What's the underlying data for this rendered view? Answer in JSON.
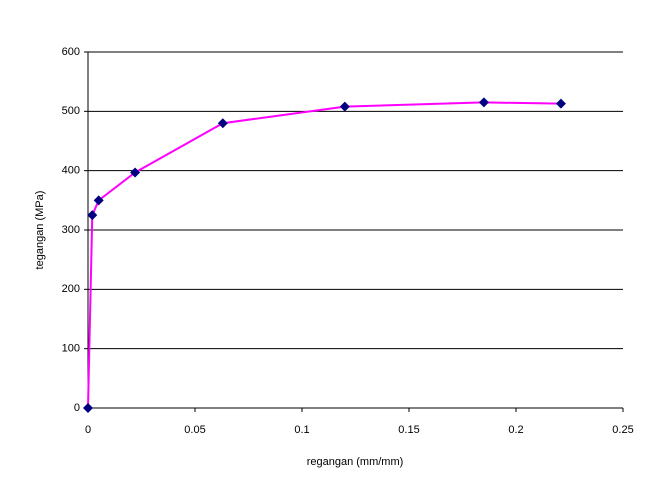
{
  "chart_data": {
    "type": "line",
    "x_label": "regangan (mm/mm)",
    "y_label": "tegangan (MPa)",
    "x": [
      0,
      0.002,
      0.005,
      0.022,
      0.063,
      0.12,
      0.185,
      0.221
    ],
    "values": [
      0,
      325,
      350,
      397,
      480,
      508,
      515,
      513
    ],
    "color": "#ff00ff",
    "marker_color": "#000080",
    "xlim": [
      0,
      0.25
    ],
    "xticks": [
      0,
      0.05,
      0.1,
      0.15,
      0.2,
      0.25
    ],
    "ylim": [
      0,
      600
    ],
    "yticks": [
      0,
      100,
      200,
      300,
      400,
      500,
      600
    ],
    "grid": true
  }
}
